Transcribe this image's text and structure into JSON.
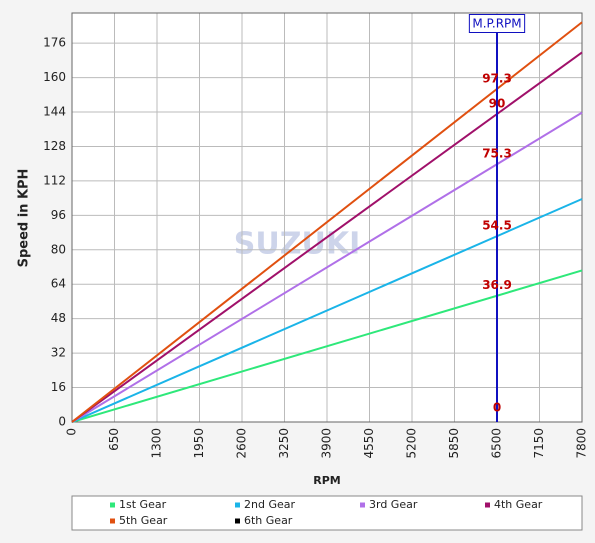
{
  "chart_data": {
    "type": "line",
    "y_label": "Speed in KPH",
    "x_label": "RPM",
    "watermark": "SUZUKI",
    "x": [
      0,
      7800
    ],
    "series": [
      {
        "name": "1st Gear",
        "color": "#2ee87a",
        "values": [
          0,
          70.4
        ]
      },
      {
        "name": "2nd Gear",
        "color": "#1ab4e8",
        "values": [
          0,
          103.6
        ]
      },
      {
        "name": "3rd Gear",
        "color": "#b070e8",
        "values": [
          0,
          143.7
        ]
      },
      {
        "name": "4th Gear",
        "color": "#a0106a",
        "values": [
          0,
          171.7
        ]
      },
      {
        "name": "5th Gear",
        "color": "#e05010",
        "values": [
          0,
          185.7
        ]
      },
      {
        "name": "6th Gear",
        "color": "#000000",
        "values": [
          null,
          null
        ]
      }
    ],
    "marker": {
      "label": "M.P.RPM",
      "x": 6500,
      "color": "#1010c0"
    },
    "annotations": [
      "0",
      "36.9",
      "54.5",
      "75.3",
      "90",
      "97.3"
    ],
    "annotation_color": "#c00000",
    "xlim": [
      0,
      7800
    ],
    "xticks": [
      0,
      650,
      1300,
      1950,
      2600,
      3250,
      3900,
      4550,
      5200,
      5850,
      6500,
      7150,
      7800
    ],
    "ylim": [
      0,
      190
    ],
    "yticks": [
      0,
      16,
      32,
      48,
      64,
      80,
      96,
      112,
      128,
      144,
      160,
      176
    ],
    "grid": true
  }
}
